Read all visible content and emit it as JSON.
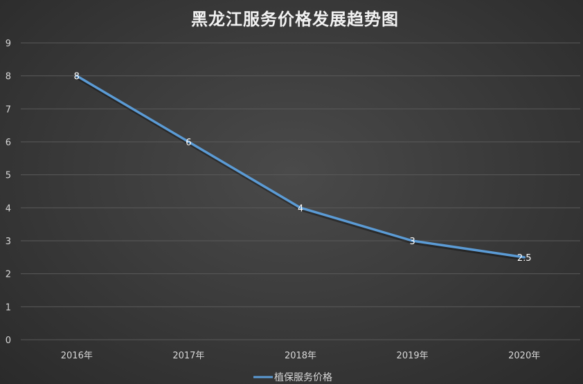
{
  "chart_data": {
    "type": "line",
    "title": "黑龙江服务价格发展趋势图",
    "categories": [
      "2016年",
      "2017年",
      "2018年",
      "2019年",
      "2020年"
    ],
    "series": [
      {
        "name": "植保服务价格",
        "values": [
          8,
          6,
          4,
          3,
          2.5
        ],
        "data_labels": [
          "8",
          "6",
          "4",
          "3",
          "2.5"
        ],
        "color": "#5b9bd5"
      }
    ],
    "y_ticks": [
      "0",
      "1",
      "2",
      "3",
      "4",
      "5",
      "6",
      "7",
      "8",
      "9"
    ],
    "ylim": [
      0,
      9
    ],
    "grid": true,
    "legend_position": "bottom"
  },
  "colors": {
    "background": "#3a3a3a",
    "grid": "#5a5a5a",
    "text": "#d9d9d9"
  }
}
